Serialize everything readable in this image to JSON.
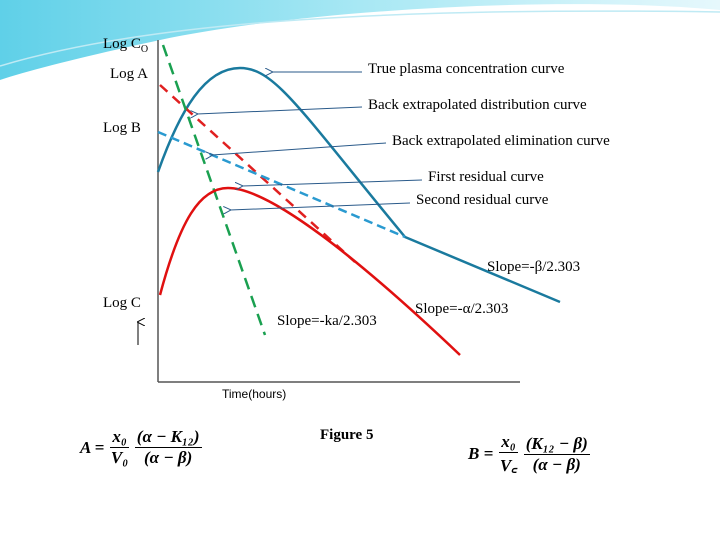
{
  "axis_labels": {
    "log_c0": "Log C",
    "log_c0_sub": "O",
    "log_a": "Log A",
    "log_b": "Log B",
    "log_c": "Log C",
    "x_axis": "Time(hours)"
  },
  "callouts": [
    "True plasma concentration curve",
    "Back extrapolated distribution curve",
    "Back extrapolated elimination curve",
    "First residual curve",
    "Second residual curve"
  ],
  "slopes": {
    "beta": "Slope=-β/2.303",
    "alpha": "Slope=-α/2.303",
    "ka": "Slope=-ka/2.303"
  },
  "caption": "Figure 5",
  "equation_a": {
    "lhs": "A =",
    "num1": "x₀",
    "den1": "V₀",
    "num2": "(α − K₁₂)",
    "den2": "(α − β)"
  },
  "equation_b": {
    "lhs": "B =",
    "num1": "x₀",
    "den1": "V꜀",
    "num2": "(K₁₂ − β)",
    "den2": "(α − β)"
  },
  "colors": {
    "true_curve": "#1a7a9e",
    "distribution": "#e02020",
    "elimination": "#2a9ad0",
    "absorption": "#1aa050",
    "residual": "#e01010",
    "arrow": "#2a5a8a"
  }
}
